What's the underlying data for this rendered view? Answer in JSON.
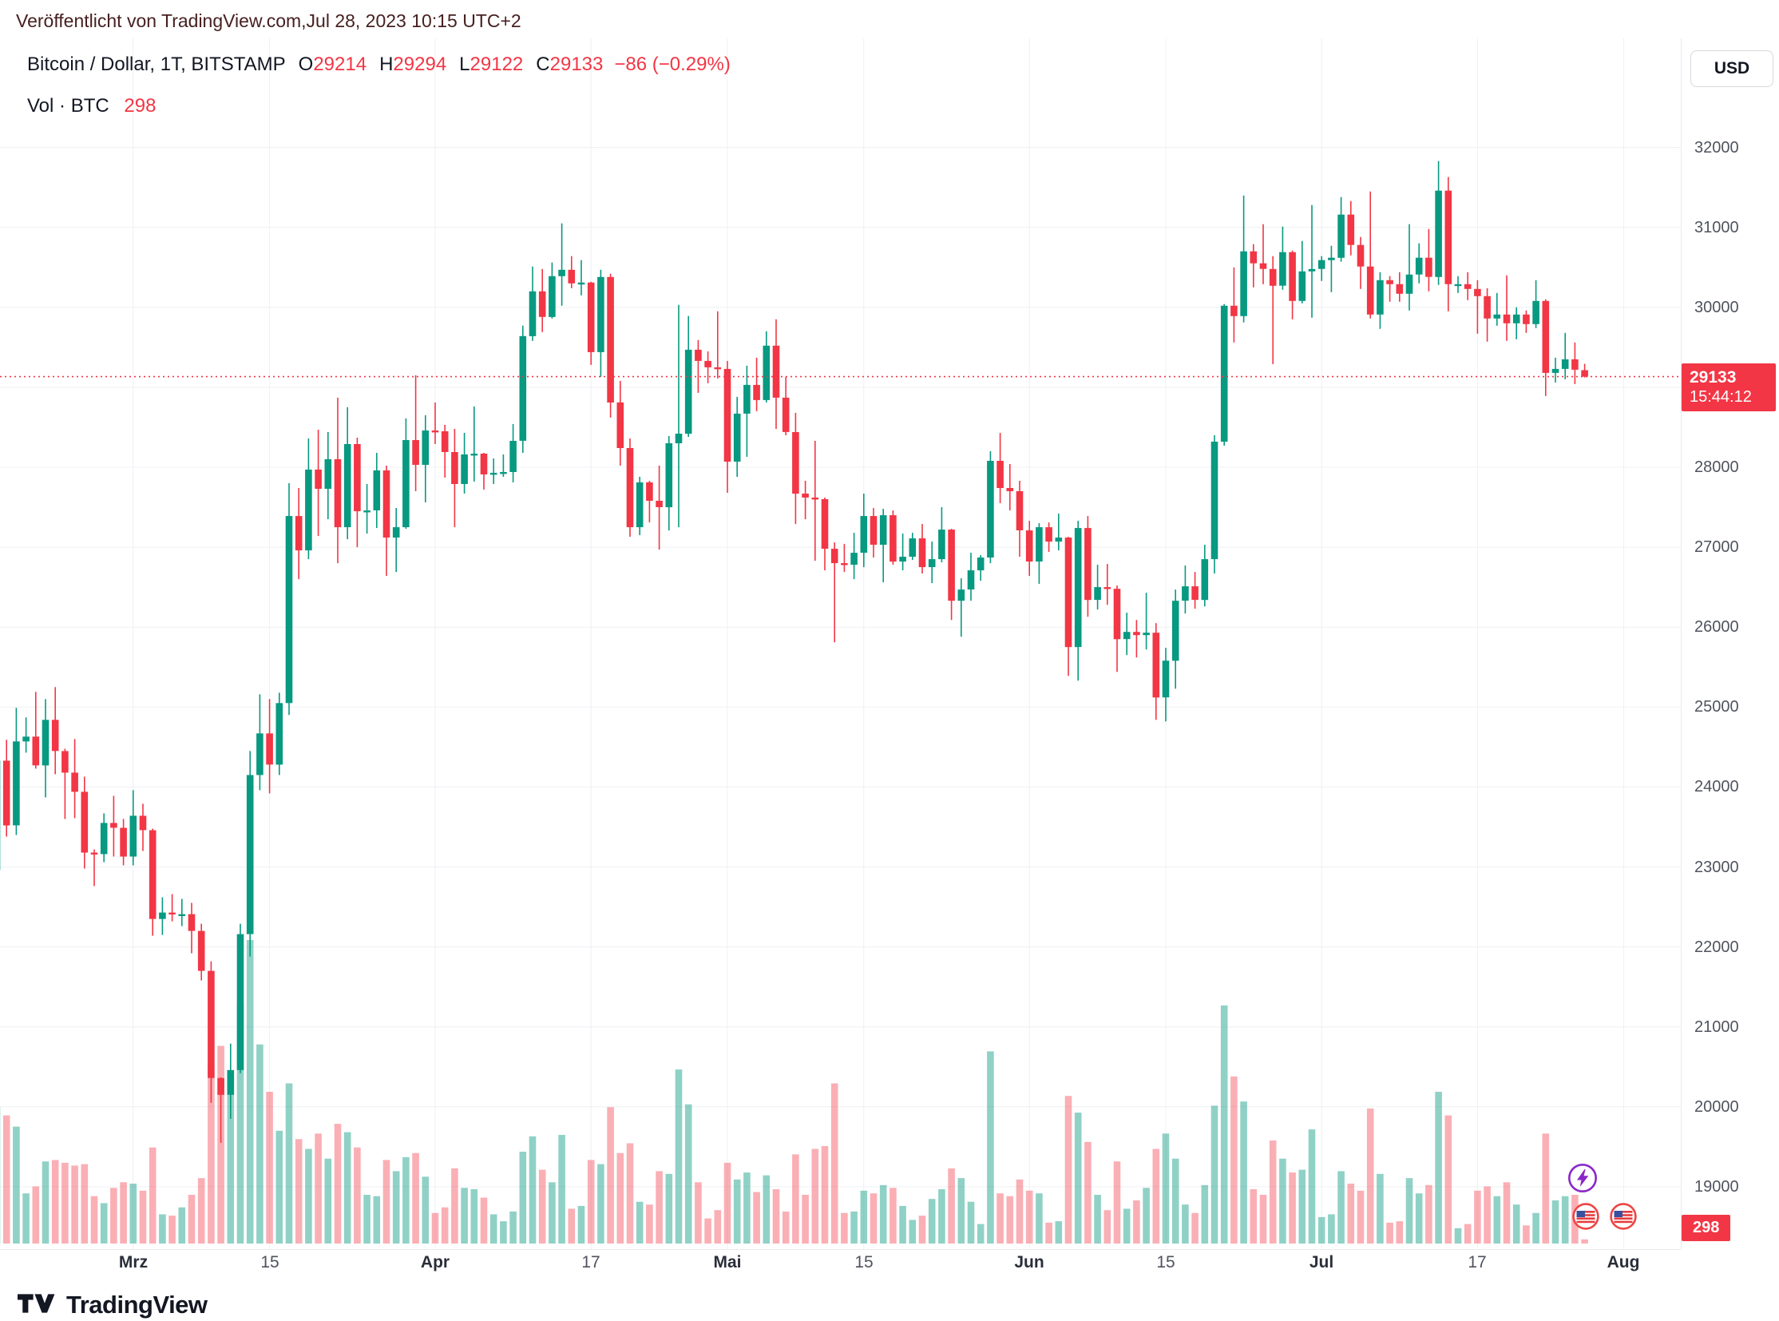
{
  "attribution": "Veröffentlicht von TradingView.com,Jul 28, 2023 10:15 UTC+2",
  "legend": {
    "symbol": "Bitcoin / Dollar, 1T, BITSTAMP",
    "ohlc": [
      {
        "k": "O",
        "v": "29214"
      },
      {
        "k": "H",
        "v": "29294"
      },
      {
        "k": "L",
        "v": "29122"
      },
      {
        "k": "C",
        "v": "29133"
      }
    ],
    "change": "−86 (−0.29%)",
    "vol_label": "Vol · BTC",
    "vol_value": "298"
  },
  "currency_button": "USD",
  "price_axis": {
    "last_price": "29133",
    "countdown": "15:44:12",
    "volume_badge": "298"
  },
  "footer": {
    "brand": "TradingView"
  },
  "icons": [
    "lightning-event-icon",
    "us-flag-event-icon",
    "us-flag-event-icon",
    "tradingview-logo-icon"
  ],
  "colors": {
    "up": "#089981",
    "down": "#f23645",
    "vol_up": "rgba(8,153,129,0.45)",
    "vol_down": "rgba(242,54,69,0.40)",
    "grid": "#eef0f4",
    "axis_text": "#50535e",
    "dark_text": "#131722",
    "accent_red": "#f23645",
    "badge_bg": "#f23645",
    "icon_purple": "#8b27c9",
    "icon_flag_red": "#ef4444",
    "icon_flag_blue": "#3b4fa0"
  },
  "chart_data": {
    "type": "candlestick",
    "title": "Bitcoin / Dollar, 1T, BITSTAMP",
    "grid": true,
    "ylim": [
      19000,
      32000
    ],
    "last_close": 29133,
    "volume_scale_max": 21800,
    "price_ticks": [
      {
        "v": 32000
      },
      {
        "v": 31000
      },
      {
        "v": 30000
      },
      {
        "v": 29000,
        "hidden": true
      },
      {
        "v": 28000
      },
      {
        "v": 27000
      },
      {
        "v": 26000
      },
      {
        "v": 25000
      },
      {
        "v": 24000
      },
      {
        "v": 23000
      },
      {
        "v": 22000
      },
      {
        "v": 21000
      },
      {
        "v": 20000
      },
      {
        "v": 19000
      }
    ],
    "time_ticks": [
      {
        "label": "Mrz",
        "i": 14,
        "month": true
      },
      {
        "label": "15",
        "i": 28
      },
      {
        "label": "Apr",
        "i": 45,
        "month": true
      },
      {
        "label": "17",
        "i": 61
      },
      {
        "label": "Mai",
        "i": 75,
        "month": true
      },
      {
        "label": "15",
        "i": 89
      },
      {
        "label": "Jun",
        "i": 106,
        "month": true
      },
      {
        "label": "15",
        "i": 120
      },
      {
        "label": "Jul",
        "i": 136,
        "month": true
      },
      {
        "label": "17",
        "i": 152
      },
      {
        "label": "Aug",
        "i": 167,
        "month": true
      }
    ],
    "candles": [
      [
        22960,
        24380,
        22880,
        24330,
        9800
      ],
      [
        24330,
        24590,
        23380,
        23520,
        9200
      ],
      [
        23520,
        24990,
        23400,
        24570,
        8400
      ],
      [
        24570,
        24870,
        24430,
        24630,
        3600
      ],
      [
        24630,
        25190,
        24230,
        24270,
        4100
      ],
      [
        24270,
        25100,
        23870,
        24840,
        5900
      ],
      [
        24840,
        25250,
        24160,
        24450,
        6000
      ],
      [
        24450,
        24480,
        23600,
        24180,
        5800
      ],
      [
        24180,
        24600,
        23610,
        23940,
        5600
      ],
      [
        23940,
        24130,
        22980,
        23180,
        5700
      ],
      [
        23180,
        23220,
        22760,
        23160,
        3400
      ],
      [
        23160,
        23670,
        23060,
        23550,
        2900
      ],
      [
        23550,
        23890,
        23130,
        23490,
        4000
      ],
      [
        23490,
        23600,
        23020,
        23130,
        4400
      ],
      [
        23130,
        23960,
        23020,
        23640,
        4300
      ],
      [
        23640,
        23790,
        23200,
        23460,
        3800
      ],
      [
        23460,
        23480,
        22140,
        22350,
        6900
      ],
      [
        22350,
        22620,
        22150,
        22430,
        2100
      ],
      [
        22430,
        22660,
        22320,
        22410,
        2000
      ],
      [
        22410,
        22600,
        22260,
        22410,
        2600
      ],
      [
        22410,
        22550,
        21920,
        22200,
        3500
      ],
      [
        22200,
        22290,
        21580,
        21700,
        4700
      ],
      [
        21700,
        21820,
        20050,
        20360,
        12800
      ],
      [
        20360,
        20370,
        19550,
        20150,
        14200
      ],
      [
        20150,
        20790,
        19850,
        20460,
        12200
      ],
      [
        20460,
        22290,
        20420,
        22160,
        17200
      ],
      [
        22160,
        24450,
        21880,
        24150,
        21800
      ],
      [
        24150,
        25160,
        23960,
        24670,
        14300
      ],
      [
        24670,
        25100,
        23920,
        24280,
        10900
      ],
      [
        24280,
        25180,
        24150,
        25050,
        8100
      ],
      [
        25050,
        27800,
        24900,
        27390,
        11500
      ],
      [
        27390,
        27740,
        26600,
        26960,
        7500
      ],
      [
        26960,
        28360,
        26850,
        27970,
        6800
      ],
      [
        27970,
        28470,
        27140,
        27730,
        7900
      ],
      [
        27730,
        28440,
        27350,
        28100,
        6100
      ],
      [
        28100,
        28870,
        26800,
        27250,
        8600
      ],
      [
        27250,
        28750,
        27100,
        28290,
        8000
      ],
      [
        28290,
        28370,
        27000,
        27450,
        6900
      ],
      [
        27450,
        27790,
        27170,
        27460,
        3500
      ],
      [
        27460,
        28180,
        27240,
        27960,
        3400
      ],
      [
        27960,
        28020,
        26640,
        27120,
        6000
      ],
      [
        27120,
        27490,
        26690,
        27250,
        5200
      ],
      [
        27250,
        28610,
        27230,
        28340,
        6200
      ],
      [
        28340,
        29150,
        27700,
        28030,
        6500
      ],
      [
        28030,
        28650,
        27560,
        28460,
        4800
      ],
      [
        28460,
        28810,
        28290,
        28450,
        2200
      ],
      [
        28450,
        28530,
        27870,
        28190,
        2600
      ],
      [
        28190,
        28480,
        27250,
        27790,
        5400
      ],
      [
        27790,
        28430,
        27670,
        28160,
        4000
      ],
      [
        28160,
        28760,
        27820,
        28170,
        3900
      ],
      [
        28170,
        28180,
        27720,
        27910,
        3300
      ],
      [
        27910,
        28110,
        27790,
        27930,
        2100
      ],
      [
        27930,
        28160,
        27880,
        27940,
        1600
      ],
      [
        27940,
        28540,
        27810,
        28330,
        2300
      ],
      [
        28330,
        29770,
        28180,
        29640,
        6600
      ],
      [
        29640,
        30510,
        29580,
        30200,
        7700
      ],
      [
        30200,
        30480,
        29690,
        29880,
        5300
      ],
      [
        29880,
        30560,
        29860,
        30390,
        4400
      ],
      [
        30390,
        31050,
        30020,
        30470,
        7800
      ],
      [
        30470,
        30640,
        30240,
        30300,
        2500
      ],
      [
        30300,
        30590,
        30150,
        30310,
        2700
      ],
      [
        30310,
        30320,
        29280,
        29440,
        6000
      ],
      [
        29440,
        30470,
        29130,
        30380,
        5700
      ],
      [
        30380,
        30420,
        28620,
        28810,
        9800
      ],
      [
        28810,
        29080,
        28020,
        28240,
        6500
      ],
      [
        28240,
        28360,
        27130,
        27250,
        7200
      ],
      [
        27250,
        27880,
        27150,
        27810,
        3000
      ],
      [
        27810,
        27830,
        27310,
        27580,
        2800
      ],
      [
        27580,
        28020,
        26970,
        27500,
        5200
      ],
      [
        27500,
        28390,
        27210,
        28300,
        5000
      ],
      [
        28300,
        30030,
        27250,
        28420,
        12500
      ],
      [
        28420,
        29890,
        28380,
        29470,
        10000
      ],
      [
        29470,
        29590,
        28930,
        29330,
        4400
      ],
      [
        29330,
        29450,
        29050,
        29250,
        1800
      ],
      [
        29250,
        29950,
        29110,
        29230,
        2400
      ],
      [
        29230,
        29330,
        27680,
        28070,
        5800
      ],
      [
        28070,
        28880,
        27880,
        28670,
        4600
      ],
      [
        28670,
        29270,
        28130,
        29030,
        5100
      ],
      [
        29030,
        29370,
        28700,
        28840,
        3700
      ],
      [
        28840,
        29700,
        28810,
        29520,
        4900
      ],
      [
        29520,
        29850,
        28480,
        28870,
        3900
      ],
      [
        28870,
        29130,
        28400,
        28440,
        2300
      ],
      [
        28440,
        28680,
        27290,
        27670,
        6400
      ],
      [
        27670,
        27830,
        27350,
        27620,
        3500
      ],
      [
        27620,
        28330,
        26830,
        27600,
        6800
      ],
      [
        27600,
        27620,
        26710,
        26980,
        7000
      ],
      [
        26980,
        27060,
        25810,
        26800,
        11500
      ],
      [
        26800,
        27040,
        26690,
        26780,
        2200
      ],
      [
        26780,
        27180,
        26600,
        26930,
        2300
      ],
      [
        26930,
        27670,
        26750,
        27390,
        3800
      ],
      [
        27390,
        27490,
        26870,
        27030,
        3600
      ],
      [
        27030,
        27480,
        26560,
        27400,
        4200
      ],
      [
        27400,
        27460,
        26780,
        26820,
        4000
      ],
      [
        26820,
        27170,
        26710,
        26880,
        2700
      ],
      [
        26880,
        27180,
        26840,
        27110,
        1700
      ],
      [
        27110,
        27290,
        26670,
        26750,
        2000
      ],
      [
        26750,
        27070,
        26550,
        26850,
        3200
      ],
      [
        26850,
        27500,
        26810,
        27220,
        3900
      ],
      [
        27220,
        27230,
        26090,
        26330,
        5400
      ],
      [
        26330,
        26610,
        25880,
        26470,
        4700
      ],
      [
        26470,
        26930,
        26330,
        26710,
        3000
      ],
      [
        26710,
        26900,
        26580,
        26870,
        1400
      ],
      [
        26870,
        28200,
        26800,
        28080,
        13800
      ],
      [
        28080,
        28430,
        27550,
        27740,
        3600
      ],
      [
        27740,
        28040,
        27460,
        27700,
        3400
      ],
      [
        27700,
        27830,
        26880,
        27210,
        4600
      ],
      [
        27210,
        27330,
        26640,
        26820,
        3800
      ],
      [
        26820,
        27300,
        26540,
        27250,
        3600
      ],
      [
        27250,
        27310,
        26940,
        27070,
        1500
      ],
      [
        27070,
        27420,
        26960,
        27120,
        1600
      ],
      [
        27120,
        27130,
        25390,
        25750,
        10600
      ],
      [
        25750,
        27330,
        25330,
        27240,
        9400
      ],
      [
        27240,
        27390,
        26130,
        26340,
        7300
      ],
      [
        26340,
        26780,
        26220,
        26500,
        3500
      ],
      [
        26500,
        26790,
        26280,
        26480,
        2400
      ],
      [
        26480,
        26520,
        25440,
        25850,
        5900
      ],
      [
        25850,
        26180,
        25650,
        25940,
        2500
      ],
      [
        25940,
        26090,
        25620,
        25900,
        3100
      ],
      [
        25900,
        26430,
        25720,
        25930,
        4000
      ],
      [
        25930,
        26050,
        24840,
        25120,
        6800
      ],
      [
        25120,
        25740,
        24820,
        25580,
        7900
      ],
      [
        25580,
        26470,
        25230,
        26330,
        6100
      ],
      [
        26330,
        26770,
        26170,
        26510,
        2800
      ],
      [
        26510,
        26690,
        26230,
        26340,
        2200
      ],
      [
        26340,
        27030,
        26260,
        26850,
        4200
      ],
      [
        26850,
        28400,
        26670,
        28320,
        9900
      ],
      [
        28320,
        30040,
        28270,
        30020,
        17100
      ],
      [
        30020,
        30500,
        29560,
        29890,
        12000
      ],
      [
        29890,
        31400,
        29810,
        30700,
        10200
      ],
      [
        30700,
        30790,
        30250,
        30550,
        3900
      ],
      [
        30550,
        31040,
        30290,
        30480,
        3500
      ],
      [
        30480,
        30640,
        29290,
        30270,
        7400
      ],
      [
        30270,
        31010,
        30220,
        30690,
        6100
      ],
      [
        30690,
        30710,
        29850,
        30080,
        5100
      ],
      [
        30080,
        30830,
        30050,
        30450,
        5300
      ],
      [
        30450,
        31280,
        29870,
        30480,
        8200
      ],
      [
        30480,
        30640,
        30330,
        30590,
        1900
      ],
      [
        30590,
        30770,
        30190,
        30620,
        2100
      ],
      [
        30620,
        31380,
        30570,
        31160,
        5200
      ],
      [
        31160,
        31330,
        30650,
        30780,
        4300
      ],
      [
        30780,
        30880,
        30230,
        30510,
        3800
      ],
      [
        30510,
        31450,
        29860,
        29910,
        9700
      ],
      [
        29910,
        30440,
        29730,
        30340,
        5000
      ],
      [
        30340,
        30390,
        30070,
        30290,
        1500
      ],
      [
        30290,
        30440,
        30070,
        30170,
        1600
      ],
      [
        30170,
        31040,
        29960,
        30410,
        4700
      ],
      [
        30410,
        30800,
        30300,
        30620,
        3600
      ],
      [
        30620,
        30980,
        30200,
        30380,
        4200
      ],
      [
        30380,
        31830,
        30280,
        31460,
        10900
      ],
      [
        31460,
        31630,
        29950,
        30290,
        9200
      ],
      [
        30290,
        30390,
        30180,
        30290,
        1100
      ],
      [
        30290,
        30440,
        30090,
        30230,
        1400
      ],
      [
        30230,
        30340,
        29670,
        30140,
        3800
      ],
      [
        30140,
        30240,
        29570,
        29860,
        4100
      ],
      [
        29860,
        30180,
        29770,
        29910,
        3400
      ],
      [
        29910,
        30400,
        29580,
        29800,
        4400
      ],
      [
        29800,
        30000,
        29600,
        29910,
        2800
      ],
      [
        29910,
        29960,
        29680,
        29790,
        1300
      ],
      [
        29790,
        30340,
        29740,
        30080,
        2200
      ],
      [
        30080,
        30100,
        28890,
        29180,
        7900
      ],
      [
        29180,
        29370,
        29060,
        29230,
        3100
      ],
      [
        29230,
        29680,
        29100,
        29350,
        3400
      ],
      [
        29350,
        29560,
        29040,
        29220,
        3500
      ],
      [
        29214,
        29294,
        29122,
        29133,
        298
      ]
    ]
  }
}
